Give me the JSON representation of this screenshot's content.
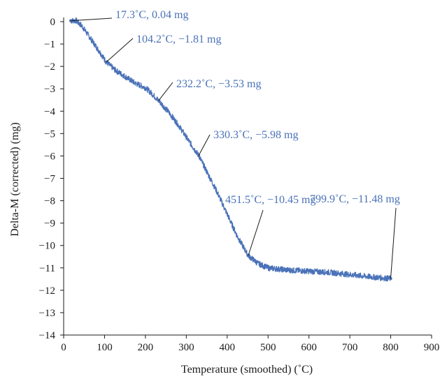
{
  "chart_data": {
    "type": "line",
    "title": "",
    "xlabel": "Temperature (smoothed) (˚C)",
    "ylabel": "Delta-M (corrected) (mg)",
    "xlim": [
      0,
      900
    ],
    "ylim": [
      -14,
      0
    ],
    "xticks": [
      "0",
      "100",
      "200",
      "300",
      "400",
      "500",
      "600",
      "700",
      "800",
      "900"
    ],
    "yticks": [
      "0",
      "−1",
      "−2",
      "−3",
      "−4",
      "−5",
      "−6",
      "−7",
      "−8",
      "−9",
      "−10",
      "−11",
      "−12",
      "−13",
      "−14"
    ],
    "grid": false,
    "series_color": "#4a72b8",
    "series": [
      {
        "x": [
          17.3,
          30,
          45,
          60,
          75,
          90,
          104.2,
          125,
          150,
          175,
          200,
          215,
          232.2,
          255,
          280,
          305,
          330.3,
          350,
          375,
          400,
          425,
          451.5,
          475,
          500,
          550,
          600,
          650,
          700,
          750,
          799.9
        ],
        "y": [
          0.04,
          0.05,
          -0.2,
          -0.6,
          -1.0,
          -1.4,
          -1.81,
          -2.15,
          -2.45,
          -2.75,
          -2.95,
          -3.2,
          -3.53,
          -4.0,
          -4.6,
          -5.3,
          -5.98,
          -6.7,
          -7.6,
          -8.6,
          -9.6,
          -10.45,
          -10.8,
          -11.0,
          -11.1,
          -11.15,
          -11.2,
          -11.3,
          -11.4,
          -11.48
        ]
      }
    ],
    "annotations": [
      {
        "text": "17.3˚C, 0.04 mg",
        "x": 17.3,
        "y": 0.04
      },
      {
        "text": "104.2˚C, −1.81 mg",
        "x": 104.2,
        "y": -1.81
      },
      {
        "text": "232.2˚C, −3.53 mg",
        "x": 232.2,
        "y": -3.53
      },
      {
        "text": "330.3˚C, −5.98 mg",
        "x": 330.3,
        "y": -5.98
      },
      {
        "text": "451.5˚C, −10.45 mg",
        "x": 451.5,
        "y": -10.45
      },
      {
        "text": "799.9˚C, −11.48 mg",
        "x": 799.9,
        "y": -11.48
      }
    ]
  }
}
